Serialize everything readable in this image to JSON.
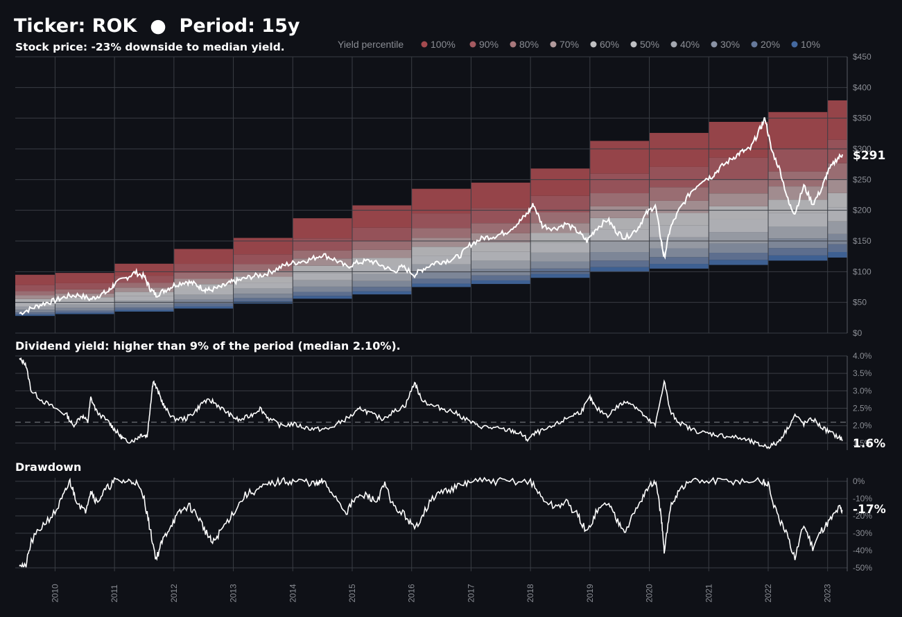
{
  "header": {
    "title": "Ticker: ROK  ●  Period: 15y",
    "subtitle": "Stock price: -23% downside to median yield."
  },
  "legend": {
    "title": "Yield percentile",
    "items": [
      "100%",
      "90%",
      "80%",
      "70%",
      "60%",
      "50%",
      "40%",
      "30%",
      "20%",
      "10%"
    ],
    "colors": [
      "#a44a4f",
      "#a45a60",
      "#a8787c",
      "#b19a9c",
      "#c0c0c2",
      "#bfc0c4",
      "#a4a8b1",
      "#8a93a5",
      "#66799b",
      "#4469a0"
    ]
  },
  "chart_data": [
    {
      "type": "area",
      "title": "Stock price: -23% downside to median yield.",
      "ylim": [
        0,
        450
      ],
      "y_ticks": [
        "$0",
        "$50",
        "$100",
        "$150",
        "$200",
        "$250",
        "$300",
        "$350",
        "$400",
        "$450"
      ],
      "x_ticks": [
        "2010",
        "2011",
        "2012",
        "2013",
        "2014",
        "2015",
        "2016",
        "2017",
        "2018",
        "2019",
        "2020",
        "2021",
        "2022",
        "2023"
      ],
      "last_value_label": "$291",
      "price_series": [
        [
          2009.4,
          32
        ],
        [
          2009.6,
          40
        ],
        [
          2009.8,
          48
        ],
        [
          2010.0,
          53
        ],
        [
          2010.2,
          60
        ],
        [
          2010.4,
          62
        ],
        [
          2010.6,
          55
        ],
        [
          2010.75,
          62
        ],
        [
          2010.9,
          68
        ],
        [
          2011.0,
          80
        ],
        [
          2011.2,
          90
        ],
        [
          2011.35,
          99
        ],
        [
          2011.5,
          92
        ],
        [
          2011.6,
          72
        ],
        [
          2011.7,
          62
        ],
        [
          2011.85,
          70
        ],
        [
          2012.0,
          78
        ],
        [
          2012.2,
          84
        ],
        [
          2012.35,
          80
        ],
        [
          2012.5,
          72
        ],
        [
          2012.6,
          70
        ],
        [
          2012.8,
          75
        ],
        [
          2012.95,
          82
        ],
        [
          2013.1,
          86
        ],
        [
          2013.3,
          92
        ],
        [
          2013.5,
          95
        ],
        [
          2013.7,
          103
        ],
        [
          2013.9,
          112
        ],
        [
          2014.1,
          116
        ],
        [
          2014.3,
          120
        ],
        [
          2014.5,
          128
        ],
        [
          2014.7,
          120
        ],
        [
          2014.9,
          108
        ],
        [
          2015.1,
          115
        ],
        [
          2015.3,
          118
        ],
        [
          2015.5,
          110
        ],
        [
          2015.7,
          100
        ],
        [
          2015.85,
          108
        ],
        [
          2016.05,
          95
        ],
        [
          2016.2,
          105
        ],
        [
          2016.4,
          115
        ],
        [
          2016.6,
          118
        ],
        [
          2016.8,
          125
        ],
        [
          2017.0,
          145
        ],
        [
          2017.2,
          155
        ],
        [
          2017.4,
          158
        ],
        [
          2017.6,
          165
        ],
        [
          2017.8,
          180
        ],
        [
          2017.95,
          195
        ],
        [
          2018.05,
          210
        ],
        [
          2018.2,
          175
        ],
        [
          2018.4,
          170
        ],
        [
          2018.6,
          178
        ],
        [
          2018.8,
          165
        ],
        [
          2018.95,
          150
        ],
        [
          2019.1,
          170
        ],
        [
          2019.3,
          185
        ],
        [
          2019.45,
          165
        ],
        [
          2019.6,
          155
        ],
        [
          2019.8,
          170
        ],
        [
          2019.95,
          195
        ],
        [
          2020.1,
          208
        ],
        [
          2020.2,
          150
        ],
        [
          2020.25,
          122
        ],
        [
          2020.35,
          170
        ],
        [
          2020.5,
          200
        ],
        [
          2020.7,
          230
        ],
        [
          2020.9,
          250
        ],
        [
          2021.05,
          255
        ],
        [
          2021.2,
          270
        ],
        [
          2021.4,
          285
        ],
        [
          2021.55,
          295
        ],
        [
          2021.7,
          300
        ],
        [
          2021.85,
          330
        ],
        [
          2021.95,
          350
        ],
        [
          2022.05,
          300
        ],
        [
          2022.2,
          265
        ],
        [
          2022.35,
          210
        ],
        [
          2022.45,
          195
        ],
        [
          2022.6,
          240
        ],
        [
          2022.75,
          210
        ],
        [
          2022.9,
          235
        ],
        [
          2023.0,
          262
        ],
        [
          2023.15,
          283
        ],
        [
          2023.25,
          291
        ]
      ],
      "bands": {
        "years": [
          2009.0,
          2010.0,
          2011.0,
          2012.0,
          2013.0,
          2014.0,
          2015.0,
          2016.0,
          2017.0,
          2018.0,
          2019.0,
          2020.0,
          2021.0,
          2022.0,
          2023.0
        ],
        "tops": [
          95,
          98,
          113,
          137,
          155,
          187,
          208,
          235,
          245,
          268,
          313,
          326,
          344,
          360,
          379
        ],
        "bottoms": [
          28,
          31,
          35,
          40,
          48,
          56,
          63,
          75,
          80,
          90,
          100,
          105,
          111,
          118,
          123
        ]
      }
    },
    {
      "type": "line",
      "title": "Dividend yield: higher than 9% of the period (median 2.10%).",
      "ylim": [
        1.3,
        4.0
      ],
      "y_ticks": [
        "1.5%",
        "2.0%",
        "2.5%",
        "3.0%",
        "3.5%",
        "4.0%"
      ],
      "median": 2.1,
      "last_value_label": "1.6%",
      "series": [
        [
          2009.4,
          3.9
        ],
        [
          2009.5,
          3.8
        ],
        [
          2009.6,
          3.0
        ],
        [
          2009.8,
          2.7
        ],
        [
          2010.0,
          2.5
        ],
        [
          2010.2,
          2.3
        ],
        [
          2010.3,
          2.0
        ],
        [
          2010.45,
          2.3
        ],
        [
          2010.55,
          2.1
        ],
        [
          2010.6,
          2.8
        ],
        [
          2010.7,
          2.4
        ],
        [
          2010.9,
          2.1
        ],
        [
          2011.0,
          1.9
        ],
        [
          2011.1,
          1.7
        ],
        [
          2011.2,
          1.55
        ],
        [
          2011.35,
          1.6
        ],
        [
          2011.45,
          1.75
        ],
        [
          2011.55,
          1.7
        ],
        [
          2011.6,
          2.5
        ],
        [
          2011.65,
          3.3
        ],
        [
          2011.75,
          2.9
        ],
        [
          2011.85,
          2.5
        ],
        [
          2012.0,
          2.2
        ],
        [
          2012.2,
          2.2
        ],
        [
          2012.35,
          2.4
        ],
        [
          2012.5,
          2.7
        ],
        [
          2012.65,
          2.7
        ],
        [
          2012.8,
          2.5
        ],
        [
          2012.95,
          2.3
        ],
        [
          2013.1,
          2.15
        ],
        [
          2013.3,
          2.3
        ],
        [
          2013.45,
          2.5
        ],
        [
          2013.6,
          2.2
        ],
        [
          2013.8,
          2.0
        ],
        [
          2014.0,
          2.05
        ],
        [
          2014.2,
          1.95
        ],
        [
          2014.4,
          1.9
        ],
        [
          2014.6,
          1.9
        ],
        [
          2014.8,
          2.1
        ],
        [
          2015.0,
          2.3
        ],
        [
          2015.15,
          2.5
        ],
        [
          2015.3,
          2.35
        ],
        [
          2015.5,
          2.2
        ],
        [
          2015.7,
          2.4
        ],
        [
          2015.9,
          2.6
        ],
        [
          2016.05,
          3.25
        ],
        [
          2016.15,
          2.8
        ],
        [
          2016.3,
          2.6
        ],
        [
          2016.5,
          2.5
        ],
        [
          2016.7,
          2.4
        ],
        [
          2016.9,
          2.2
        ],
        [
          2017.1,
          2.0
        ],
        [
          2017.3,
          1.95
        ],
        [
          2017.5,
          1.9
        ],
        [
          2017.7,
          1.85
        ],
        [
          2017.85,
          1.75
        ],
        [
          2017.95,
          1.6
        ],
        [
          2018.1,
          1.8
        ],
        [
          2018.3,
          1.9
        ],
        [
          2018.5,
          2.1
        ],
        [
          2018.7,
          2.3
        ],
        [
          2018.85,
          2.4
        ],
        [
          2019.0,
          2.8
        ],
        [
          2019.1,
          2.5
        ],
        [
          2019.3,
          2.3
        ],
        [
          2019.5,
          2.6
        ],
        [
          2019.65,
          2.7
        ],
        [
          2019.8,
          2.5
        ],
        [
          2019.95,
          2.2
        ],
        [
          2020.1,
          2.0
        ],
        [
          2020.25,
          3.3
        ],
        [
          2020.35,
          2.4
        ],
        [
          2020.5,
          2.1
        ],
        [
          2020.7,
          1.9
        ],
        [
          2020.9,
          1.8
        ],
        [
          2021.1,
          1.75
        ],
        [
          2021.3,
          1.7
        ],
        [
          2021.5,
          1.65
        ],
        [
          2021.7,
          1.55
        ],
        [
          2021.85,
          1.45
        ],
        [
          2022.0,
          1.4
        ],
        [
          2022.15,
          1.5
        ],
        [
          2022.3,
          1.85
        ],
        [
          2022.45,
          2.3
        ],
        [
          2022.6,
          2.05
        ],
        [
          2022.75,
          2.2
        ],
        [
          2022.9,
          1.95
        ],
        [
          2023.05,
          1.8
        ],
        [
          2023.2,
          1.65
        ],
        [
          2023.25,
          1.6
        ]
      ]
    },
    {
      "type": "line",
      "title": "Drawdown",
      "ylim": [
        -52,
        2
      ],
      "y_ticks": [
        "-50%",
        "-40%",
        "-30%",
        "-20%",
        "-10%",
        "0%"
      ],
      "last_value_label": "-17%",
      "series": [
        [
          2009.4,
          -47
        ],
        [
          2009.5,
          -50
        ],
        [
          2009.6,
          -35
        ],
        [
          2009.8,
          -25
        ],
        [
          2010.0,
          -18
        ],
        [
          2010.15,
          -8
        ],
        [
          2010.25,
          0
        ],
        [
          2010.35,
          -10
        ],
        [
          2010.5,
          -18
        ],
        [
          2010.6,
          -5
        ],
        [
          2010.7,
          -12
        ],
        [
          2010.85,
          -5
        ],
        [
          2011.0,
          0
        ],
        [
          2011.2,
          0
        ],
        [
          2011.35,
          0
        ],
        [
          2011.5,
          -10
        ],
        [
          2011.6,
          -28
        ],
        [
          2011.7,
          -45
        ],
        [
          2011.8,
          -35
        ],
        [
          2011.95,
          -25
        ],
        [
          2012.1,
          -18
        ],
        [
          2012.25,
          -14
        ],
        [
          2012.4,
          -20
        ],
        [
          2012.55,
          -30
        ],
        [
          2012.65,
          -36
        ],
        [
          2012.8,
          -28
        ],
        [
          2013.0,
          -18
        ],
        [
          2013.2,
          -8
        ],
        [
          2013.4,
          -5
        ],
        [
          2013.6,
          -2
        ],
        [
          2013.8,
          0
        ],
        [
          2014.0,
          0
        ],
        [
          2014.2,
          0
        ],
        [
          2014.4,
          -2
        ],
        [
          2014.5,
          0
        ],
        [
          2014.7,
          -8
        ],
        [
          2014.9,
          -18
        ],
        [
          2015.05,
          -10
        ],
        [
          2015.25,
          -8
        ],
        [
          2015.4,
          -12
        ],
        [
          2015.55,
          -2
        ],
        [
          2015.7,
          -15
        ],
        [
          2015.9,
          -20
        ],
        [
          2016.05,
          -28
        ],
        [
          2016.2,
          -18
        ],
        [
          2016.4,
          -8
        ],
        [
          2016.6,
          -5
        ],
        [
          2016.8,
          -3
        ],
        [
          2017.0,
          0
        ],
        [
          2017.3,
          0
        ],
        [
          2017.6,
          0
        ],
        [
          2018.0,
          0
        ],
        [
          2018.2,
          -10
        ],
        [
          2018.4,
          -15
        ],
        [
          2018.6,
          -12
        ],
        [
          2018.8,
          -20
        ],
        [
          2018.95,
          -30
        ],
        [
          2019.1,
          -18
        ],
        [
          2019.3,
          -12
        ],
        [
          2019.45,
          -22
        ],
        [
          2019.6,
          -28
        ],
        [
          2019.8,
          -15
        ],
        [
          2019.95,
          -5
        ],
        [
          2020.1,
          0
        ],
        [
          2020.2,
          -20
        ],
        [
          2020.25,
          -42
        ],
        [
          2020.35,
          -15
        ],
        [
          2020.5,
          -5
        ],
        [
          2020.7,
          0
        ],
        [
          2021.0,
          0
        ],
        [
          2021.3,
          0
        ],
        [
          2021.6,
          0
        ],
        [
          2021.9,
          0
        ],
        [
          2022.0,
          -2
        ],
        [
          2022.15,
          -20
        ],
        [
          2022.3,
          -30
        ],
        [
          2022.45,
          -44
        ],
        [
          2022.6,
          -25
        ],
        [
          2022.75,
          -38
        ],
        [
          2022.9,
          -28
        ],
        [
          2023.05,
          -22
        ],
        [
          2023.2,
          -15
        ],
        [
          2023.25,
          -17
        ]
      ]
    }
  ]
}
